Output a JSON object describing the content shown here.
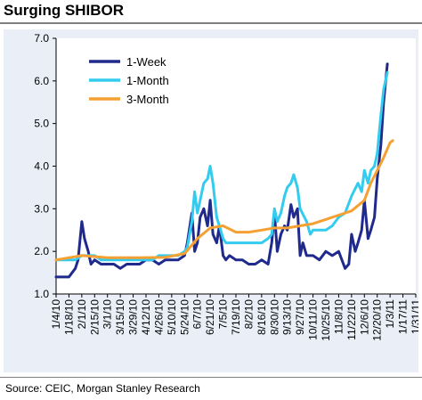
{
  "title": "Surging SHIBOR",
  "source": "Source: CEIC, Morgan Stanley Research",
  "chart_data": {
    "type": "line",
    "title": "Surging SHIBOR",
    "xlabel": "",
    "ylabel": "",
    "ylim": [
      1.0,
      7.0
    ],
    "yticks": [
      "1.0",
      "2.0",
      "3.0",
      "4.0",
      "5.0",
      "6.0",
      "7.0"
    ],
    "xticks": [
      "1/4/10",
      "1/18/10",
      "2/1/10",
      "2/15/10",
      "3/1/10",
      "3/15/10",
      "3/29/10",
      "4/12/10",
      "4/26/10",
      "5/10/10",
      "5/24/10",
      "6/7/10",
      "6/21/10",
      "7/5/10",
      "7/19/10",
      "8/2/10",
      "8/16/10",
      "8/30/10",
      "9/13/10",
      "9/27/10",
      "10/11/10",
      "10/25/10",
      "11/8/10",
      "11/22/10",
      "12/6/10",
      "12/20/10",
      "1/3/11",
      "1/17/11",
      "1/31/11"
    ],
    "grid": false,
    "legend_position": "top-left",
    "series": [
      {
        "name": "1-Week",
        "color": "#1f2a8c",
        "x": [
          "2010-01-04",
          "2010-01-11",
          "2010-01-18",
          "2010-01-25",
          "2010-01-28",
          "2010-02-01",
          "2010-02-04",
          "2010-02-08",
          "2010-02-11",
          "2010-02-15",
          "2010-02-22",
          "2010-03-01",
          "2010-03-08",
          "2010-03-15",
          "2010-03-22",
          "2010-03-29",
          "2010-04-05",
          "2010-04-12",
          "2010-04-19",
          "2010-04-26",
          "2010-05-03",
          "2010-05-10",
          "2010-05-17",
          "2010-05-24",
          "2010-05-27",
          "2010-06-01",
          "2010-06-04",
          "2010-06-07",
          "2010-06-10",
          "2010-06-14",
          "2010-06-18",
          "2010-06-21",
          "2010-06-24",
          "2010-06-28",
          "2010-07-01",
          "2010-07-05",
          "2010-07-08",
          "2010-07-12",
          "2010-07-19",
          "2010-07-26",
          "2010-08-02",
          "2010-08-09",
          "2010-08-16",
          "2010-08-23",
          "2010-08-27",
          "2010-08-30",
          "2010-09-02",
          "2010-09-06",
          "2010-09-10",
          "2010-09-13",
          "2010-09-17",
          "2010-09-20",
          "2010-09-24",
          "2010-09-27",
          "2010-09-30",
          "2010-10-04",
          "2010-10-11",
          "2010-10-18",
          "2010-10-25",
          "2010-11-01",
          "2010-11-08",
          "2010-11-15",
          "2010-11-19",
          "2010-11-22",
          "2010-11-26",
          "2010-11-29",
          "2010-12-03",
          "2010-12-06",
          "2010-12-10",
          "2010-12-13",
          "2010-12-17",
          "2010-12-20",
          "2010-12-24",
          "2010-12-27",
          "2010-12-31"
        ],
        "values": [
          1.4,
          1.4,
          1.4,
          1.6,
          1.8,
          2.7,
          2.3,
          2.0,
          1.7,
          1.8,
          1.7,
          1.7,
          1.7,
          1.6,
          1.7,
          1.7,
          1.7,
          1.8,
          1.8,
          1.7,
          1.8,
          1.8,
          1.8,
          1.9,
          2.2,
          2.9,
          2.0,
          2.2,
          2.8,
          3.0,
          2.6,
          3.2,
          2.4,
          2.2,
          2.6,
          1.9,
          1.8,
          1.9,
          1.8,
          1.8,
          1.7,
          1.7,
          1.8,
          1.7,
          2.2,
          2.9,
          2.0,
          2.4,
          2.6,
          2.5,
          3.1,
          2.8,
          3.0,
          1.9,
          2.2,
          1.9,
          1.9,
          1.8,
          2.0,
          1.9,
          2.0,
          1.6,
          1.7,
          2.4,
          2.0,
          2.2,
          2.5,
          3.2,
          2.3,
          2.5,
          2.8,
          3.7,
          4.5,
          5.5,
          6.4
        ]
      },
      {
        "name": "1-Month",
        "color": "#33ccee",
        "x": [
          "2010-01-04",
          "2010-01-11",
          "2010-01-18",
          "2010-01-25",
          "2010-02-01",
          "2010-02-08",
          "2010-02-15",
          "2010-02-22",
          "2010-03-01",
          "2010-03-08",
          "2010-03-15",
          "2010-03-22",
          "2010-03-29",
          "2010-04-05",
          "2010-04-12",
          "2010-04-19",
          "2010-04-26",
          "2010-05-03",
          "2010-05-10",
          "2010-05-17",
          "2010-05-24",
          "2010-05-27",
          "2010-06-01",
          "2010-06-04",
          "2010-06-07",
          "2010-06-10",
          "2010-06-14",
          "2010-06-18",
          "2010-06-21",
          "2010-06-24",
          "2010-06-28",
          "2010-07-01",
          "2010-07-05",
          "2010-07-08",
          "2010-07-12",
          "2010-07-19",
          "2010-07-26",
          "2010-08-02",
          "2010-08-09",
          "2010-08-16",
          "2010-08-23",
          "2010-08-27",
          "2010-08-30",
          "2010-09-02",
          "2010-09-06",
          "2010-09-10",
          "2010-09-13",
          "2010-09-17",
          "2010-09-20",
          "2010-09-24",
          "2010-09-27",
          "2010-10-04",
          "2010-10-08",
          "2010-10-11",
          "2010-10-18",
          "2010-10-25",
          "2010-11-01",
          "2010-11-08",
          "2010-11-15",
          "2010-11-22",
          "2010-11-29",
          "2010-12-03",
          "2010-12-06",
          "2010-12-10",
          "2010-12-13",
          "2010-12-17",
          "2010-12-20",
          "2010-12-24",
          "2010-12-27",
          "2010-12-31"
        ],
        "values": [
          1.8,
          1.8,
          1.8,
          1.8,
          1.9,
          1.9,
          1.9,
          1.8,
          1.8,
          1.8,
          1.8,
          1.8,
          1.8,
          1.8,
          1.8,
          1.8,
          1.9,
          1.9,
          1.9,
          1.9,
          2.0,
          2.1,
          2.7,
          3.4,
          2.9,
          3.2,
          3.6,
          3.7,
          4.0,
          3.6,
          2.8,
          2.6,
          2.3,
          2.2,
          2.2,
          2.2,
          2.2,
          2.2,
          2.2,
          2.2,
          2.3,
          2.4,
          3.0,
          2.7,
          2.9,
          3.3,
          3.5,
          3.6,
          3.8,
          3.5,
          3.0,
          2.7,
          2.4,
          2.5,
          2.5,
          2.5,
          2.6,
          2.8,
          2.9,
          3.3,
          3.6,
          3.4,
          3.9,
          3.6,
          3.9,
          4.0,
          4.3,
          5.2,
          5.8,
          6.2
        ]
      },
      {
        "name": "3-Month",
        "color": "#f5a033",
        "x": [
          "2010-01-04",
          "2010-02-01",
          "2010-03-01",
          "2010-04-05",
          "2010-05-03",
          "2010-05-24",
          "2010-06-07",
          "2010-06-21",
          "2010-07-05",
          "2010-07-19",
          "2010-08-02",
          "2010-08-16",
          "2010-08-30",
          "2010-09-13",
          "2010-09-27",
          "2010-10-11",
          "2010-10-25",
          "2010-11-08",
          "2010-11-22",
          "2010-12-06",
          "2010-12-13",
          "2010-12-20",
          "2010-12-27",
          "2011-01-03",
          "2011-01-06"
        ],
        "values": [
          1.8,
          1.9,
          1.85,
          1.85,
          1.86,
          1.95,
          2.3,
          2.55,
          2.6,
          2.45,
          2.45,
          2.5,
          2.55,
          2.55,
          2.6,
          2.65,
          2.75,
          2.85,
          2.95,
          3.2,
          3.6,
          3.9,
          4.2,
          4.55,
          4.6
        ]
      }
    ]
  }
}
